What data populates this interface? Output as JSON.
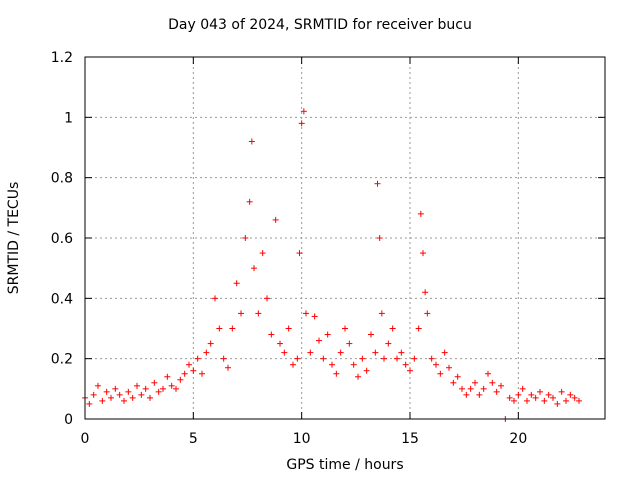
{
  "chart_data": {
    "type": "scatter",
    "title": "Day 043 of 2024, SRMTID for receiver bucu",
    "xlabel": "GPS time / hours",
    "ylabel": "SRMTID / TECUs",
    "xlim": [
      0,
      24
    ],
    "ylim": [
      0,
      1.2
    ],
    "x_ticks": [
      0,
      5,
      10,
      15,
      20
    ],
    "y_ticks": [
      0,
      0.2,
      0.4,
      0.6,
      0.8,
      1,
      1.2
    ],
    "x_tick_labels": [
      "0",
      "5",
      "10",
      "15",
      "20"
    ],
    "y_tick_labels": [
      "0",
      "0.2",
      "0.4",
      "0.6",
      "0.8",
      "1",
      "1.2"
    ],
    "grid": true,
    "marker": "+",
    "color": "#ff0000",
    "series": [
      {
        "name": "SRMTID",
        "x": [
          0.0,
          0.2,
          0.4,
          0.6,
          0.8,
          1.0,
          1.2,
          1.4,
          1.6,
          1.8,
          2.0,
          2.2,
          2.4,
          2.6,
          2.8,
          3.0,
          3.2,
          3.4,
          3.6,
          3.8,
          4.0,
          4.2,
          4.4,
          4.6,
          4.8,
          5.0,
          5.2,
          5.4,
          5.6,
          5.8,
          6.0,
          6.2,
          6.4,
          6.6,
          6.8,
          7.0,
          7.2,
          7.4,
          7.6,
          7.7,
          7.8,
          8.0,
          8.2,
          8.4,
          8.6,
          8.8,
          9.0,
          9.2,
          9.4,
          9.6,
          9.8,
          9.9,
          10.0,
          10.1,
          10.2,
          10.4,
          10.6,
          10.8,
          11.0,
          11.2,
          11.4,
          11.6,
          11.8,
          12.0,
          12.2,
          12.4,
          12.6,
          12.8,
          13.0,
          13.2,
          13.4,
          13.5,
          13.6,
          13.7,
          13.8,
          14.0,
          14.2,
          14.4,
          14.6,
          14.8,
          15.0,
          15.2,
          15.4,
          15.5,
          15.6,
          15.7,
          15.8,
          16.0,
          16.2,
          16.4,
          16.6,
          16.8,
          17.0,
          17.2,
          17.4,
          17.6,
          17.8,
          18.0,
          18.2,
          18.4,
          18.6,
          18.8,
          19.0,
          19.2,
          19.4,
          19.6,
          19.8,
          20.0,
          20.2,
          20.4,
          20.6,
          20.8,
          21.0,
          21.2,
          21.4,
          21.6,
          21.8,
          22.0,
          22.2,
          22.4,
          22.6,
          22.8
        ],
        "y": [
          0.07,
          0.05,
          0.08,
          0.11,
          0.06,
          0.09,
          0.07,
          0.1,
          0.08,
          0.06,
          0.09,
          0.07,
          0.11,
          0.08,
          0.1,
          0.07,
          0.12,
          0.09,
          0.1,
          0.14,
          0.11,
          0.1,
          0.13,
          0.15,
          0.18,
          0.16,
          0.2,
          0.15,
          0.22,
          0.25,
          0.4,
          0.3,
          0.2,
          0.17,
          0.3,
          0.45,
          0.35,
          0.6,
          0.72,
          0.92,
          0.5,
          0.35,
          0.55,
          0.4,
          0.28,
          0.66,
          0.25,
          0.22,
          0.3,
          0.18,
          0.2,
          0.55,
          0.98,
          1.02,
          0.35,
          0.22,
          0.34,
          0.26,
          0.2,
          0.28,
          0.18,
          0.15,
          0.22,
          0.3,
          0.25,
          0.18,
          0.14,
          0.2,
          0.16,
          0.28,
          0.22,
          0.78,
          0.6,
          0.35,
          0.2,
          0.25,
          0.3,
          0.2,
          0.22,
          0.18,
          0.16,
          0.2,
          0.3,
          0.68,
          0.55,
          0.42,
          0.35,
          0.2,
          0.18,
          0.15,
          0.22,
          0.17,
          0.12,
          0.14,
          0.1,
          0.08,
          0.1,
          0.12,
          0.08,
          0.1,
          0.15,
          0.12,
          0.09,
          0.11,
          0.0,
          0.07,
          0.06,
          0.08,
          0.1,
          0.06,
          0.08,
          0.07,
          0.09,
          0.06,
          0.08,
          0.07,
          0.05,
          0.09,
          0.06,
          0.08,
          0.07,
          0.06
        ]
      }
    ]
  }
}
